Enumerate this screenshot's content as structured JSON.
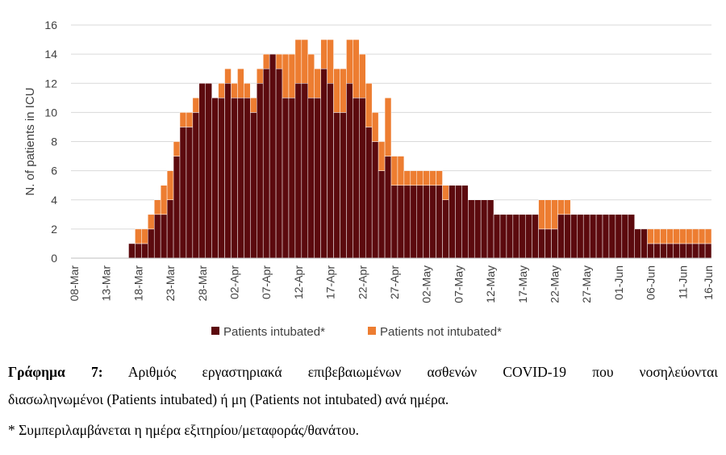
{
  "chart_data": {
    "type": "bar",
    "stacked": true,
    "ylabel": "N. of patients in ICU",
    "ylim": [
      0,
      16
    ],
    "yticks": [
      0,
      2,
      4,
      6,
      8,
      10,
      12,
      14,
      16
    ],
    "grid": "horizontal",
    "legend_position": "bottom",
    "xtick_labels": [
      "08-Mar",
      "13-Mar",
      "18-Mar",
      "23-Mar",
      "28-Mar",
      "02-Apr",
      "07-Apr",
      "12-Apr",
      "17-Apr",
      "22-Apr",
      "27-Apr",
      "02-May",
      "07-May",
      "12-May",
      "17-May",
      "22-May",
      "27-May",
      "01-Jun",
      "06-Jun",
      "11-Jun",
      "16-Jun"
    ],
    "series": [
      {
        "name": "Patients intubated*",
        "color": "#5c0a0e",
        "values": [
          0,
          0,
          0,
          0,
          0,
          0,
          0,
          0,
          0,
          1,
          1,
          1,
          2,
          3,
          3,
          4,
          7,
          9,
          9,
          10,
          12,
          12,
          11,
          11,
          12,
          11,
          11,
          11,
          10,
          12,
          13,
          14,
          13,
          11,
          11,
          12,
          12,
          11,
          11,
          13,
          12,
          10,
          10,
          12,
          11,
          11,
          9,
          8,
          6,
          7,
          5,
          5,
          5,
          5,
          5,
          5,
          5,
          5,
          4,
          5,
          5,
          5,
          4,
          4,
          4,
          4,
          3,
          3,
          3,
          3,
          3,
          3,
          3,
          2,
          2,
          2,
          3,
          3,
          3,
          3,
          3,
          3,
          3,
          3,
          3,
          3,
          3,
          3,
          2,
          2,
          1,
          1,
          1,
          1,
          1,
          1,
          1,
          1,
          1,
          1
        ]
      },
      {
        "name": "Patients not intubated*",
        "color": "#ed7d31",
        "values": [
          0,
          0,
          0,
          0,
          0,
          0,
          0,
          0,
          0,
          0,
          1,
          1,
          1,
          1,
          2,
          2,
          1,
          1,
          1,
          1,
          0,
          0,
          0,
          1,
          1,
          1,
          2,
          1,
          1,
          1,
          1,
          0,
          1,
          3,
          3,
          3,
          3,
          3,
          2,
          2,
          3,
          3,
          3,
          3,
          4,
          3,
          3,
          2,
          2,
          4,
          2,
          2,
          1,
          1,
          1,
          1,
          1,
          1,
          1,
          0,
          0,
          0,
          0,
          0,
          0,
          0,
          0,
          0,
          0,
          0,
          0,
          0,
          0,
          2,
          2,
          2,
          1,
          1,
          0,
          0,
          0,
          0,
          0,
          0,
          0,
          0,
          0,
          0,
          0,
          0,
          1,
          1,
          1,
          1,
          1,
          1,
          1,
          1,
          1,
          1
        ]
      }
    ]
  },
  "caption": {
    "label": "Γράφημα 7:",
    "line1": "Αριθμός εργαστηριακά επιβεβαιωμένων ασθενών COVID-19 που νοσηλεύονται",
    "line2": "διασωληνωμένοι (Patients intubated) ή μη (Patients not intubated) ανά ημέρα.",
    "footnote": "* Συμπεριλαμβάνεται η ημέρα εξιτηρίου/μεταφοράς/θανάτου."
  }
}
